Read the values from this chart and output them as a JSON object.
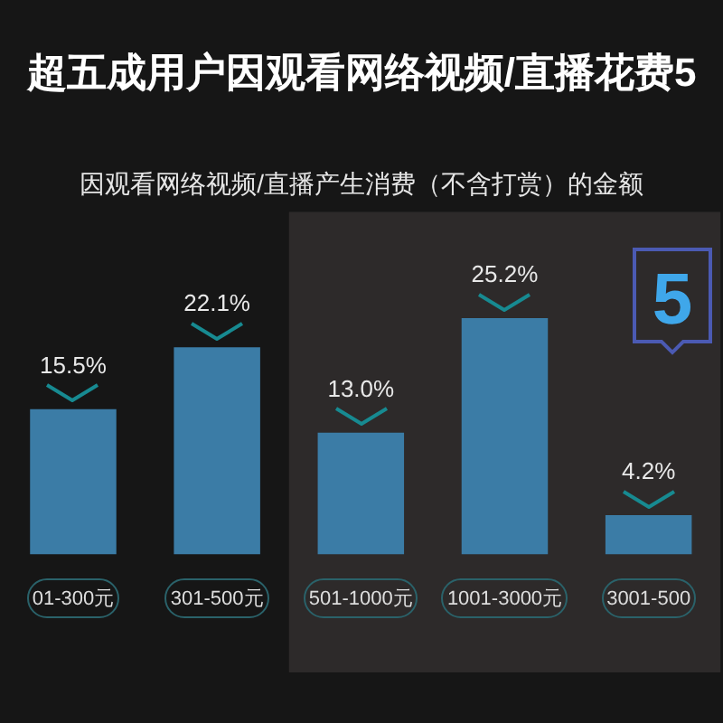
{
  "chart_data": {
    "type": "bar",
    "title": "超五成用户因观看网络视频/直播花费5",
    "subtitle": "因观看网络视频/直播产生消费（不含打赏）的金额",
    "categories": [
      "01-300元",
      "301-500元",
      "501-1000元",
      "1001-3000元",
      "3001-500"
    ],
    "values": [
      15.5,
      22.1,
      13.0,
      25.2,
      4.2
    ],
    "color": "#3b7ca6",
    "value_labels": [
      "15.5%",
      "22.1%",
      "13.0%",
      "25.2%",
      "4.2%"
    ],
    "bands": [
      {
        "axis": "x",
        "from": "501-1000元",
        "to": "3001-500",
        "color": "#2d2a2a"
      }
    ],
    "annotations": [
      "5"
    ]
  }
}
